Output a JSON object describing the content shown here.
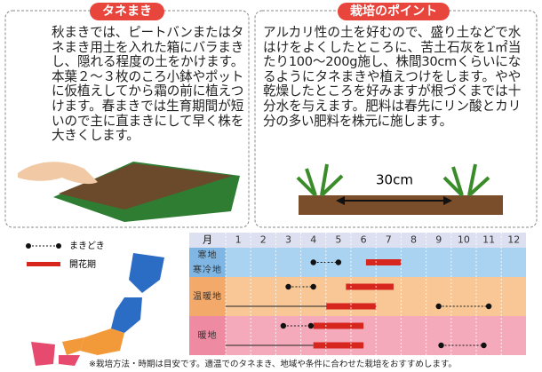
{
  "sowing": {
    "title": "タネまき",
    "body": "秋まきでは、ピートバンまたはタネまき用土を入れた箱にバラまきし、隠れる程度の土をかけます。本葉２～３枚のころ小鉢やポットに仮植えしてから霜の前に植えつけます。春まきでは生育期間が短いので主に直まきにして早く株を大きくします。"
  },
  "tips": {
    "title": "栽培のポイント",
    "body": "アルカリ性の土を好むので、盛り土などで水はけをよくしたところに、苦土石灰を1㎡当たり100～200g施し、株間30cmくらいになるようにタネまきや植えつけをします。やや乾燥したところを好みますが根づくまでは十分水を与えます。肥料は春先にリン酸とカリ分の多い肥料を株元に施します。",
    "spacing_label": "30cm"
  },
  "legend": {
    "sow": "まきどき",
    "bloom": "開花期"
  },
  "calendar": {
    "month_header": "月",
    "months": [
      1,
      2,
      3,
      4,
      5,
      6,
      7,
      8,
      9,
      10,
      11,
      12
    ],
    "groups": [
      {
        "labels": [
          "寒地",
          "寒冷地"
        ],
        "color": "#a9d3f0",
        "label_color": "#7fb6e3",
        "lanes": [
          {
            "sow": [
              4.5,
              5.5
            ],
            "bloom": [
              6.6,
              8
            ]
          }
        ]
      },
      {
        "labels": [
          "温暖地"
        ],
        "color": "#f8c795",
        "label_color": "#f3a96a",
        "lanes": [
          {
            "sow": [
              3.5,
              4.5
            ],
            "bloom": [
              5.8,
              7.7
            ]
          },
          {
            "grow": [
              1,
              5
            ],
            "bloom": [
              5,
              7
            ],
            "sow": [
              9.5,
              11.5
            ]
          }
        ]
      },
      {
        "labels": [
          "暖地"
        ],
        "color": "#f5aabb",
        "label_color": "#ee8aa2",
        "lanes": [
          {
            "sow": [
              3.3,
              4.4
            ],
            "bloom": [
              4.5,
              6.5
            ]
          },
          {
            "grow": [
              1,
              4.5
            ],
            "bloom": [
              4.5,
              6.5
            ],
            "sow": [
              9.6,
              11.3
            ]
          }
        ]
      }
    ]
  },
  "footnote": "※栽培方法・時期は目安です。適温でのタネまき、地域や条件に合わせた栽培をおすすめします。"
}
